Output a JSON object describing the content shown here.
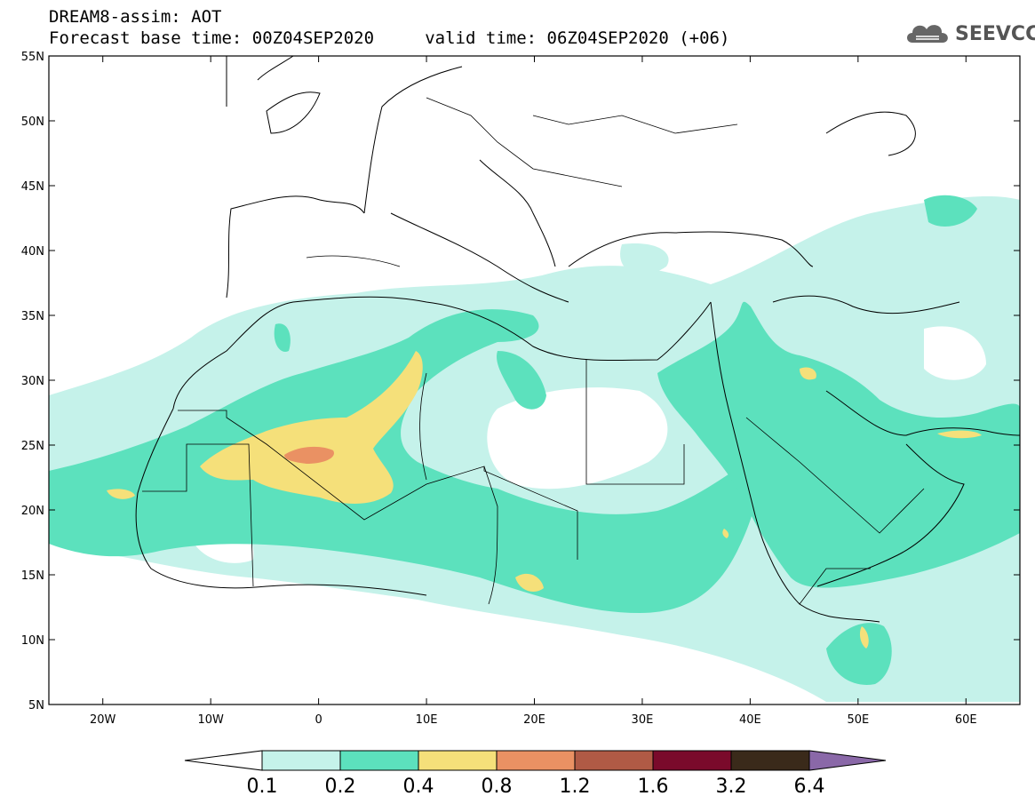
{
  "header": {
    "line1": "DREAM8-assim: AOT",
    "line2": "Forecast base time: 00Z04SEP2020     valid time: 06Z04SEP2020 (+06)"
  },
  "logo": {
    "text": "SEEVCCC",
    "icon": "cloud-icon"
  },
  "map": {
    "lon_range": [
      -25,
      65
    ],
    "lat_range": [
      5,
      55
    ],
    "lat_ticks": [
      "5N",
      "10N",
      "15N",
      "20N",
      "25N",
      "30N",
      "35N",
      "40N",
      "45N",
      "50N",
      "55N"
    ],
    "lon_ticks": [
      "20W",
      "10W",
      "0",
      "10E",
      "20E",
      "30E",
      "40E",
      "50E",
      "60E"
    ]
  },
  "colorbar": {
    "labels": [
      "0.1",
      "0.2",
      "0.4",
      "0.8",
      "1.2",
      "1.6",
      "3.2",
      "6.4"
    ],
    "colors": [
      "#c5f2ea",
      "#5ce1bd",
      "#f5e07a",
      "#ea9163",
      "#b05a45",
      "#7a0a2b",
      "#3a2a1a",
      "#8a68a8"
    ]
  }
}
